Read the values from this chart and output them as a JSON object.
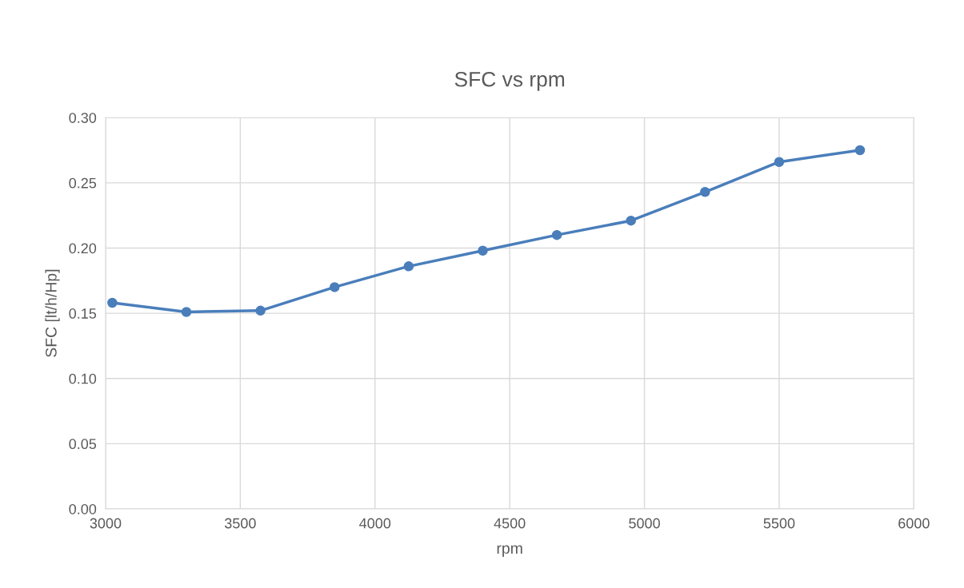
{
  "chart_data": {
    "type": "line",
    "title": "SFC vs rpm",
    "xlabel": "rpm",
    "ylabel": "SFC [lt/h/Hp]",
    "x": [
      3025,
      3300,
      3575,
      3850,
      4125,
      4400,
      4675,
      4950,
      5225,
      5500,
      5800
    ],
    "series": [
      {
        "color": "#4a7ebb",
        "values": [
          0.158,
          0.151,
          0.152,
          0.17,
          0.186,
          0.198,
          0.21,
          0.221,
          0.243,
          0.266,
          0.275
        ]
      }
    ],
    "xlim": [
      3000,
      6000
    ],
    "xticks": [
      3000,
      3500,
      4000,
      4500,
      5000,
      5500,
      6000
    ],
    "ylim": [
      0,
      0.3
    ],
    "yticks": [
      {
        "value": 0,
        "label": "0.00"
      },
      {
        "value": 0.05,
        "label": "0.05"
      },
      {
        "value": 0.1,
        "label": "0.10"
      },
      {
        "value": 0.15,
        "label": "0.15"
      },
      {
        "value": 0.2,
        "label": "0.20"
      },
      {
        "value": 0.25,
        "label": "0.25"
      },
      {
        "value": 0.3,
        "label": "0.30"
      }
    ],
    "grid": true,
    "marker": "circle",
    "line_style": "solid",
    "legend": false
  }
}
